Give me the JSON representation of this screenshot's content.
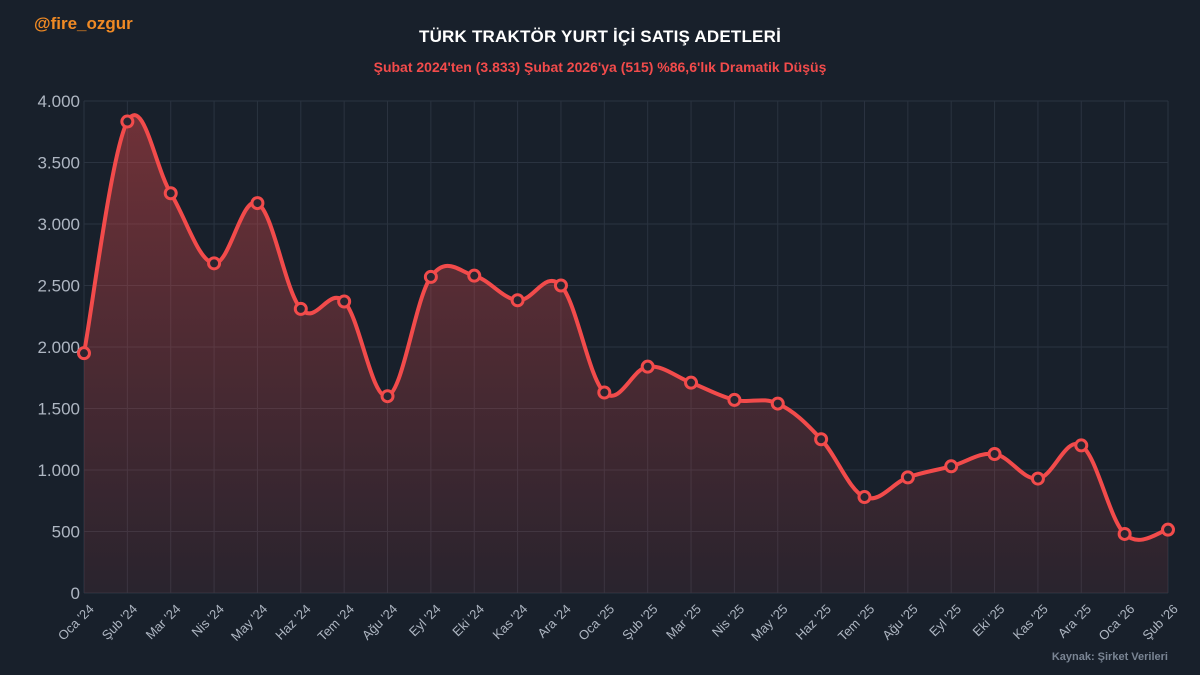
{
  "header": {
    "handle": "@fire_ozgur",
    "title": "TÜRK TRAKTÖR YURT İÇİ SATIŞ ADETLERİ",
    "subtitle": "Şubat 2024'ten (3.833) Şubat 2026'ya (515) %86,6'lık Dramatik Düşüş",
    "source": "Kaynak: Şirket Verileri"
  },
  "colors": {
    "background": "#18202b",
    "line": "#f24b4b",
    "handle": "#f08a24",
    "subtitle": "#f24b4b",
    "marker_fill": "#2a2530"
  },
  "chart_data": {
    "type": "area",
    "title": "TÜRK TRAKTÖR YURT İÇİ SATIŞ ADETLERİ",
    "subtitle": "Şubat 2024'ten (3.833) Şubat 2026'ya (515) %86,6'lık Dramatik Düşüş",
    "xlabel": "",
    "ylabel": "",
    "ylim": [
      0,
      4000
    ],
    "yticks": [
      0,
      500,
      1000,
      1500,
      2000,
      2500,
      3000,
      3500,
      4000
    ],
    "ytick_labels": [
      "0",
      "500",
      "1.000",
      "1.500",
      "2.000",
      "2.500",
      "3.000",
      "3.500",
      "4.000"
    ],
    "grid": true,
    "legend": "none",
    "categories": [
      "Oca '24",
      "Şub '24",
      "Mar '24",
      "Nis '24",
      "May '24",
      "Haz '24",
      "Tem '24",
      "Ağu '24",
      "Eyl '24",
      "Eki '24",
      "Kas '24",
      "Ara '24",
      "Oca '25",
      "Şub '25",
      "Mar '25",
      "Nis '25",
      "May '25",
      "Haz '25",
      "Tem '25",
      "Ağu '25",
      "Eyl '25",
      "Eki '25",
      "Kas '25",
      "Ara '25",
      "Oca '26",
      "Şub '26"
    ],
    "values": [
      1950,
      3833,
      3250,
      2680,
      3170,
      2310,
      2370,
      1600,
      2570,
      2580,
      2380,
      2500,
      1630,
      1840,
      1710,
      1570,
      1540,
      1250,
      780,
      940,
      1030,
      1130,
      930,
      1200,
      480,
      515
    ]
  }
}
